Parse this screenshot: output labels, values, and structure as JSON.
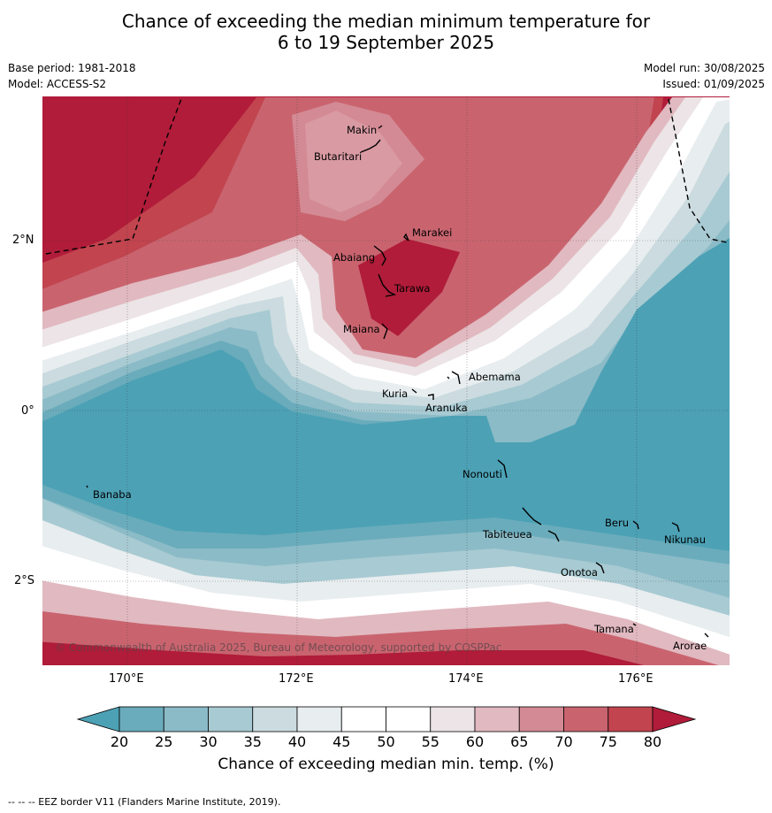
{
  "title_line1": "Chance of exceeding the median minimum temperature for",
  "title_line2": "6 to 19 September 2025",
  "base_period": "Base period: 1981-2018",
  "model": "Model: ACCESS-S2",
  "model_run": "Model run: 30/08/2025",
  "issued": "Issued: 01/09/2025",
  "copyright": "© Commonwealth of Australia 2025, Bureau of Meteorology, supported by COSPPac",
  "lon_labels": [
    "170°E",
    "172°E",
    "174°E",
    "176°E"
  ],
  "lat_labels": [
    "2°N",
    "0°",
    "2°S"
  ],
  "islands": [
    "Makin",
    "Butaritari",
    "Marakei",
    "Abaiang",
    "Tarawa",
    "Maiana",
    "Abemama",
    "Kuria",
    "Aranuka",
    "Nonouti",
    "Banaba",
    "Beru",
    "Tabiteuea",
    "Nikunau",
    "Onotoa",
    "Tamana",
    "Arorae"
  ],
  "colorbar": {
    "ticks": [
      "20",
      "25",
      "30",
      "35",
      "40",
      "45",
      "50",
      "55",
      "60",
      "65",
      "70",
      "75",
      "80"
    ],
    "colors": [
      "#6aacbb",
      "#8bbbc7",
      "#a8cad2",
      "#cbdbdf",
      "#e8edef",
      "#ffffff",
      "#ffffff",
      "#ece4e6",
      "#e1b9c0",
      "#d38a94",
      "#c9646f",
      "#c1444f"
    ],
    "below_color": "#4ca1b5",
    "above_color": "#b01c39",
    "label": "Chance of exceeding median min. temp. (%)"
  },
  "footer": "--  --  -- EEZ border V11 (Flanders Marine Institute, 2019)."
}
